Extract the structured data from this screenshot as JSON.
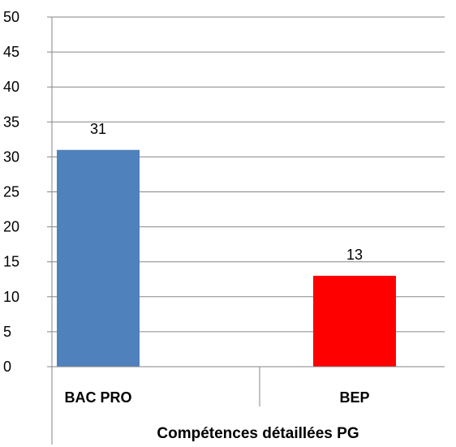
{
  "chart_data": {
    "type": "bar",
    "categories": [
      "BAC PRO",
      "BEP"
    ],
    "values": [
      31,
      13
    ],
    "colors": [
      "#4f81bd",
      "#ff0000"
    ],
    "title": "",
    "xlabel": "Compétences détaillées PG",
    "ylabel": "",
    "ylim": [
      0,
      50
    ],
    "yticks": [
      0,
      5,
      10,
      15,
      20,
      25,
      30,
      35,
      40,
      45,
      50
    ],
    "grid": true,
    "legend": "none",
    "data_labels": true
  }
}
